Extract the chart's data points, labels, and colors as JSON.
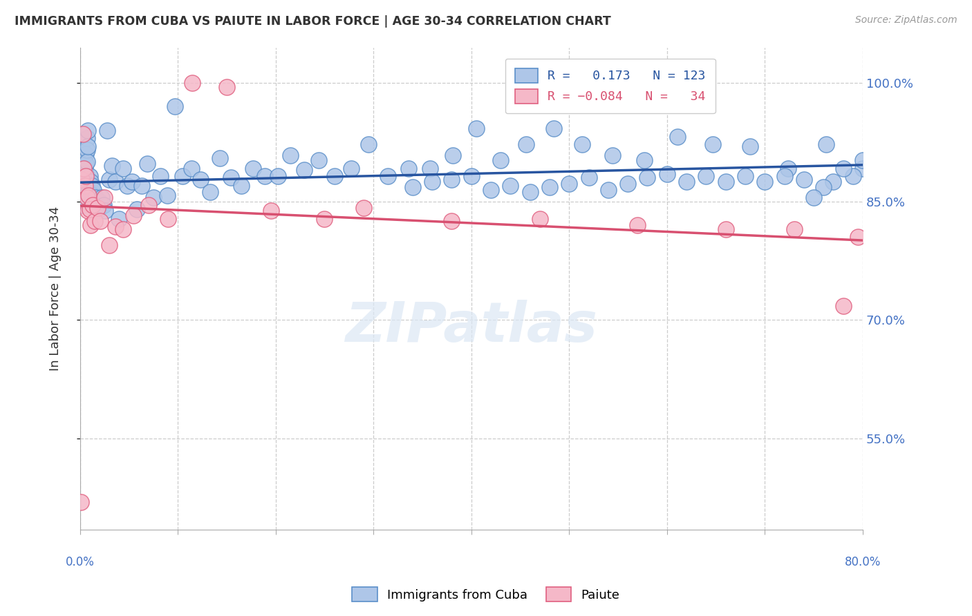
{
  "title": "IMMIGRANTS FROM CUBA VS PAIUTE IN LABOR FORCE | AGE 30-34 CORRELATION CHART",
  "source": "Source: ZipAtlas.com",
  "ylabel": "In Labor Force | Age 30-34",
  "right_ytick_values": [
    0.55,
    0.7,
    0.85,
    1.0
  ],
  "right_ytick_labels": [
    "55.0%",
    "70.0%",
    "85.0%",
    "100.0%"
  ],
  "xmin": 0.0,
  "xmax": 0.8,
  "ymin": 0.435,
  "ymax": 1.045,
  "cuba_R": 0.173,
  "cuba_N": 123,
  "paiute_R": -0.084,
  "paiute_N": 34,
  "cuba_color": "#aec6e8",
  "cuba_edge_color": "#5b8fc9",
  "paiute_color": "#f5b8c8",
  "paiute_edge_color": "#e06080",
  "cuba_line_color": "#2855a0",
  "paiute_line_color": "#d85070",
  "watermark": "ZIPatlas",
  "legend_label_cuba": "Immigrants from Cuba",
  "legend_label_paiute": "Paiute",
  "cuba_x": [
    0.001,
    0.001,
    0.001,
    0.001,
    0.001,
    0.002,
    0.002,
    0.002,
    0.002,
    0.002,
    0.003,
    0.003,
    0.003,
    0.003,
    0.003,
    0.004,
    0.004,
    0.004,
    0.004,
    0.005,
    0.005,
    0.005,
    0.005,
    0.006,
    0.006,
    0.006,
    0.007,
    0.007,
    0.007,
    0.008,
    0.008,
    0.009,
    0.009,
    0.01,
    0.01,
    0.011,
    0.012,
    0.012,
    0.013,
    0.014,
    0.015,
    0.016,
    0.017,
    0.018,
    0.02,
    0.022,
    0.024,
    0.026,
    0.028,
    0.03,
    0.033,
    0.036,
    0.04,
    0.044,
    0.048,
    0.053,
    0.058,
    0.063,
    0.069,
    0.075,
    0.082,
    0.089,
    0.097,
    0.105,
    0.114,
    0.123,
    0.133,
    0.143,
    0.154,
    0.165,
    0.177,
    0.189,
    0.202,
    0.215,
    0.229,
    0.244,
    0.26,
    0.277,
    0.295,
    0.315,
    0.336,
    0.358,
    0.381,
    0.405,
    0.43,
    0.456,
    0.484,
    0.513,
    0.544,
    0.577,
    0.611,
    0.647,
    0.685,
    0.724,
    0.763,
    0.8,
    0.8,
    0.79,
    0.78,
    0.77,
    0.76,
    0.75,
    0.74,
    0.72,
    0.7,
    0.68,
    0.66,
    0.64,
    0.62,
    0.6,
    0.58,
    0.56,
    0.54,
    0.52,
    0.5,
    0.48,
    0.46,
    0.44,
    0.42,
    0.4,
    0.38,
    0.36,
    0.34
  ],
  "cuba_y": [
    0.87,
    0.86,
    0.855,
    0.85,
    0.845,
    0.88,
    0.87,
    0.86,
    0.855,
    0.85,
    0.875,
    0.865,
    0.858,
    0.852,
    0.845,
    0.88,
    0.872,
    0.862,
    0.855,
    0.892,
    0.885,
    0.875,
    0.862,
    0.91,
    0.898,
    0.885,
    0.93,
    0.915,
    0.9,
    0.94,
    0.92,
    0.875,
    0.862,
    0.882,
    0.855,
    0.875,
    0.87,
    0.852,
    0.858,
    0.865,
    0.84,
    0.855,
    0.845,
    0.838,
    0.85,
    0.855,
    0.845,
    0.838,
    0.94,
    0.878,
    0.895,
    0.875,
    0.828,
    0.892,
    0.87,
    0.875,
    0.84,
    0.87,
    0.898,
    0.855,
    0.882,
    0.858,
    0.97,
    0.882,
    0.892,
    0.878,
    0.862,
    0.905,
    0.88,
    0.87,
    0.892,
    0.882,
    0.882,
    0.908,
    0.89,
    0.902,
    0.882,
    0.892,
    0.922,
    0.882,
    0.892,
    0.892,
    0.908,
    0.942,
    0.902,
    0.922,
    0.942,
    0.922,
    0.908,
    0.902,
    0.932,
    0.922,
    0.92,
    0.892,
    0.922,
    0.892,
    0.902,
    0.882,
    0.892,
    0.875,
    0.868,
    0.855,
    0.878,
    0.882,
    0.875,
    0.882,
    0.875,
    0.882,
    0.875,
    0.885,
    0.88,
    0.872,
    0.865,
    0.88,
    0.872,
    0.868,
    0.862,
    0.87,
    0.865,
    0.882,
    0.878,
    0.875,
    0.868
  ],
  "paiute_x": [
    0.001,
    0.002,
    0.003,
    0.004,
    0.005,
    0.006,
    0.007,
    0.008,
    0.009,
    0.01,
    0.011,
    0.013,
    0.015,
    0.018,
    0.021,
    0.025,
    0.03,
    0.036,
    0.044,
    0.055,
    0.07,
    0.09,
    0.115,
    0.15,
    0.195,
    0.25,
    0.29,
    0.38,
    0.47,
    0.57,
    0.66,
    0.73,
    0.78,
    0.795
  ],
  "paiute_y": [
    0.47,
    0.878,
    0.935,
    0.892,
    0.87,
    0.882,
    0.855,
    0.838,
    0.858,
    0.84,
    0.82,
    0.845,
    0.825,
    0.842,
    0.825,
    0.855,
    0.795,
    0.818,
    0.815,
    0.832,
    0.845,
    0.828,
    1.0,
    0.995,
    0.838,
    0.828,
    0.842,
    0.825,
    0.828,
    0.82,
    0.815,
    0.815,
    0.718,
    0.805
  ]
}
